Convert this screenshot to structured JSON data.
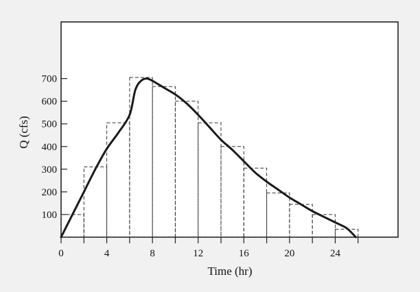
{
  "chart_data": {
    "type": "line",
    "xlabel": "Time (hr)",
    "ylabel": "Q (cfs)",
    "xlim": [
      0,
      29.5
    ],
    "ylim": [
      0,
      950
    ],
    "x_ticks": [
      0,
      4,
      8,
      12,
      16,
      20,
      24
    ],
    "x_minor_ticks": [
      2,
      6,
      10,
      14,
      18,
      22,
      26
    ],
    "y_ticks": [
      100,
      200,
      300,
      400,
      500,
      600,
      700
    ],
    "grid": false,
    "legend": "none",
    "series": [
      {
        "style": "solid",
        "x": [
          0,
          1,
          2,
          3,
          4,
          5,
          6,
          6.5,
          7,
          7.5,
          8,
          9,
          10,
          11,
          12,
          13,
          14,
          15,
          16,
          17,
          18,
          19,
          20,
          21,
          22,
          23,
          24,
          25,
          25.8
        ],
        "y": [
          0,
          100,
          200,
          300,
          390,
          460,
          540,
          650,
          690,
          700,
          690,
          660,
          630,
          590,
          540,
          485,
          430,
          385,
          335,
          285,
          245,
          210,
          175,
          145,
          115,
          90,
          65,
          40,
          0
        ]
      },
      {
        "style": "dashed-step",
        "bins": [
          {
            "x0": 0,
            "x1": 2,
            "value": 100
          },
          {
            "x0": 2,
            "x1": 4,
            "value": 310
          },
          {
            "x0": 4,
            "x1": 6,
            "value": 505
          },
          {
            "x0": 6,
            "x1": 8,
            "value": 705
          },
          {
            "x0": 8,
            "x1": 10,
            "value": 665
          },
          {
            "x0": 10,
            "x1": 12,
            "value": 600
          },
          {
            "x0": 12,
            "x1": 14,
            "value": 505
          },
          {
            "x0": 14,
            "x1": 16,
            "value": 400
          },
          {
            "x0": 16,
            "x1": 18,
            "value": 305
          },
          {
            "x0": 18,
            "x1": 20,
            "value": 195
          },
          {
            "x0": 20,
            "x1": 22,
            "value": 145
          },
          {
            "x0": 22,
            "x1": 24,
            "value": 100
          },
          {
            "x0": 24,
            "x1": 26,
            "value": 35
          }
        ]
      }
    ]
  },
  "colors": {
    "background": "#f1f1f1",
    "plot_background": "#ffffff",
    "line": "#1a1a1a",
    "dashed": "#333333"
  }
}
